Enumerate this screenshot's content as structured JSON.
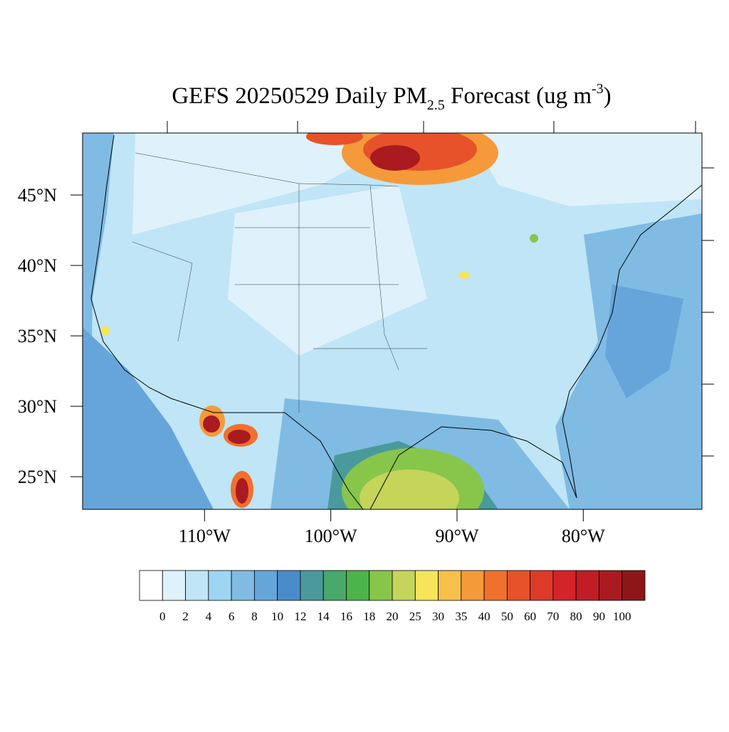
{
  "title": {
    "main": "GEFS 20250529 Daily PM",
    "subscript": "2.5",
    "middle": " Forecast (ug m",
    "superscript": "-3",
    "end": ")"
  },
  "map": {
    "xlim": [
      -119.66,
      -70.6
    ],
    "ylim": [
      22.68,
      49.4
    ],
    "xticks": [
      {
        "value": -110,
        "label": "110°W"
      },
      {
        "value": -100,
        "label": "100°W"
      },
      {
        "value": -90,
        "label": "90°W"
      },
      {
        "value": -80,
        "label": "80°W"
      }
    ],
    "yticks": [
      {
        "value": 45,
        "label": "45°N"
      },
      {
        "value": 40,
        "label": "40°N"
      },
      {
        "value": 35,
        "label": "35°N"
      },
      {
        "value": 30,
        "label": "30°N"
      },
      {
        "value": 25,
        "label": "25°N"
      }
    ]
  },
  "colorbar": {
    "levels": [
      0,
      2,
      4,
      6,
      8,
      10,
      12,
      14,
      16,
      18,
      20,
      25,
      30,
      35,
      40,
      50,
      60,
      70,
      80,
      90,
      100
    ],
    "colors": [
      "#ffffff",
      "#dff2fb",
      "#bfe5f7",
      "#9dd5f3",
      "#80bbe3",
      "#66a5da",
      "#4a8cc9",
      "#4a9a9c",
      "#48a86c",
      "#4cb44a",
      "#88c54b",
      "#c4d55a",
      "#f6e45a",
      "#f6c04a",
      "#f59a3b",
      "#f0702e",
      "#e8522a",
      "#de3a28",
      "#d42329",
      "#c01d25",
      "#aa1a21",
      "#8e1619"
    ]
  }
}
